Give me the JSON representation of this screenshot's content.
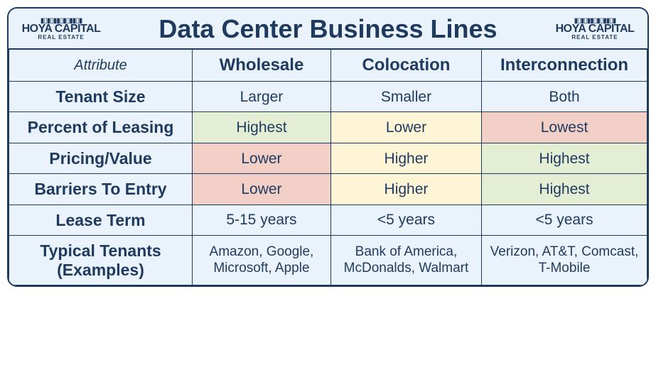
{
  "title": "Data Center Business Lines",
  "logo": {
    "main": "HOYA CAPITAL",
    "sub": "REAL ESTATE"
  },
  "colors": {
    "border": "#1f3a5f",
    "text": "#1f3a5f",
    "bg_default": "#eaf2fb",
    "bg_green": "#e3eed4",
    "bg_yellow": "#fdf5d5",
    "bg_red": "#f2cfc7"
  },
  "columns": {
    "attr": "Attribute",
    "c1": "Wholesale",
    "c2": "Colocation",
    "c3": "Interconnection"
  },
  "rows": {
    "r0": {
      "label": "Tenant Size",
      "c1": {
        "v": "Larger",
        "bg": "default"
      },
      "c2": {
        "v": "Smaller",
        "bg": "default"
      },
      "c3": {
        "v": "Both",
        "bg": "default"
      }
    },
    "r1": {
      "label": "Percent of Leasing",
      "c1": {
        "v": "Highest",
        "bg": "green"
      },
      "c2": {
        "v": "Lower",
        "bg": "yellow"
      },
      "c3": {
        "v": "Lowest",
        "bg": "red"
      }
    },
    "r2": {
      "label": "Pricing/Value",
      "c1": {
        "v": "Lower",
        "bg": "red"
      },
      "c2": {
        "v": "Higher",
        "bg": "yellow"
      },
      "c3": {
        "v": "Highest",
        "bg": "green"
      }
    },
    "r3": {
      "label": "Barriers To Entry",
      "c1": {
        "v": "Lower",
        "bg": "red"
      },
      "c2": {
        "v": "Higher",
        "bg": "yellow"
      },
      "c3": {
        "v": "Highest",
        "bg": "green"
      }
    },
    "r4": {
      "label": "Lease Term",
      "c1": {
        "v": "5-15 years",
        "bg": "default"
      },
      "c2": {
        "v": "<5 years",
        "bg": "default"
      },
      "c3": {
        "v": "<5 years",
        "bg": "default"
      }
    },
    "r5": {
      "label": "Typical Tenants (Examples)",
      "c1": {
        "v": "Amazon, Google, Microsoft, Apple",
        "bg": "default"
      },
      "c2": {
        "v": "Bank of America, McDonalds, Walmart",
        "bg": "default"
      },
      "c3": {
        "v": "Verizon, AT&T, Comcast, T-Mobile",
        "bg": "default"
      }
    }
  }
}
